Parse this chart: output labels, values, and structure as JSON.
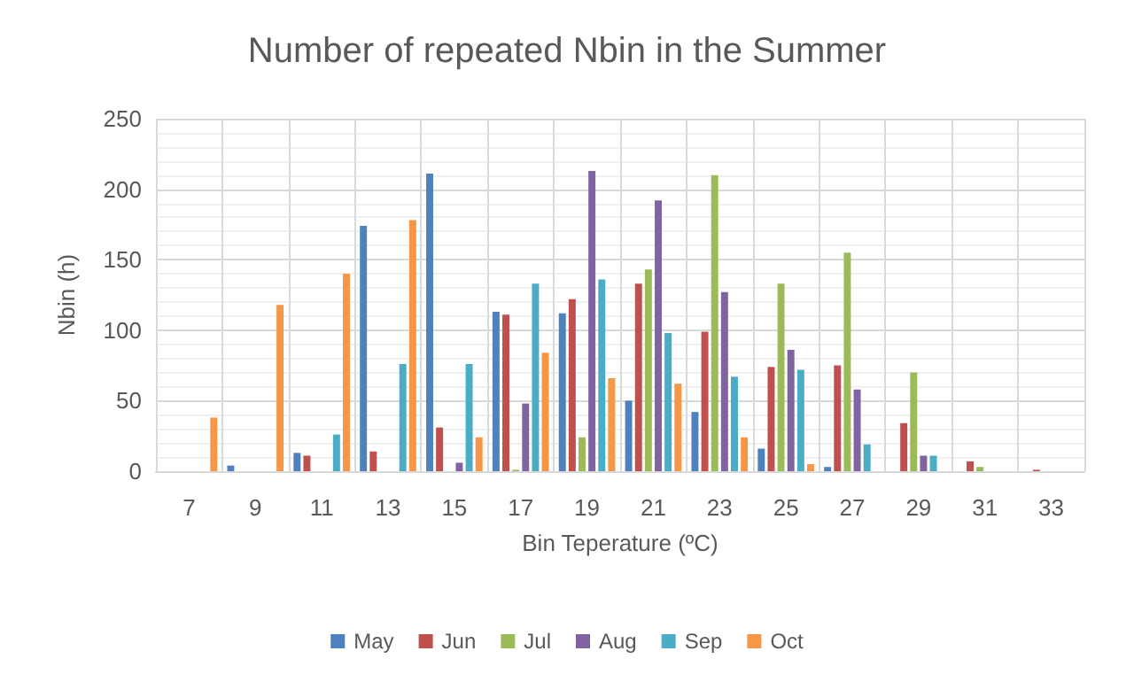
{
  "chart_data": {
    "type": "bar",
    "title": "Number of repeated Nbin in the Summer",
    "xlabel": "Bin Teperature (ºC)",
    "ylabel": "Nbin (h)",
    "categories": [
      "7",
      "9",
      "11",
      "13",
      "15",
      "17",
      "19",
      "21",
      "23",
      "25",
      "27",
      "29",
      "31",
      "33"
    ],
    "series": [
      {
        "name": "May",
        "color": "#4f81bd",
        "values": [
          0,
          4,
          13,
          174,
          211,
          113,
          112,
          50,
          42,
          16,
          3,
          0,
          0,
          0
        ]
      },
      {
        "name": "Jun",
        "color": "#c0504d",
        "values": [
          0,
          0,
          11,
          14,
          31,
          111,
          122,
          133,
          99,
          74,
          75,
          34,
          7,
          1
        ]
      },
      {
        "name": "Jul",
        "color": "#9bbb59",
        "values": [
          0,
          0,
          0,
          0,
          0,
          1,
          24,
          143,
          210,
          133,
          155,
          70,
          3,
          0
        ]
      },
      {
        "name": "Aug",
        "color": "#8064a2",
        "values": [
          0,
          0,
          0,
          0,
          6,
          48,
          213,
          192,
          127,
          86,
          58,
          11,
          0,
          0
        ]
      },
      {
        "name": "Sep",
        "color": "#4bacc6",
        "values": [
          0,
          0,
          26,
          76,
          76,
          133,
          136,
          98,
          67,
          72,
          19,
          11,
          0,
          0
        ]
      },
      {
        "name": "Oct",
        "color": "#f79646",
        "values": [
          38,
          118,
          140,
          178,
          24,
          84,
          66,
          62,
          24,
          5,
          0,
          0,
          0,
          0
        ]
      }
    ],
    "ylim": [
      0,
      250
    ],
    "yticks": [
      0,
      50,
      100,
      150,
      200,
      250
    ],
    "grid": true,
    "legend": "bottom"
  }
}
